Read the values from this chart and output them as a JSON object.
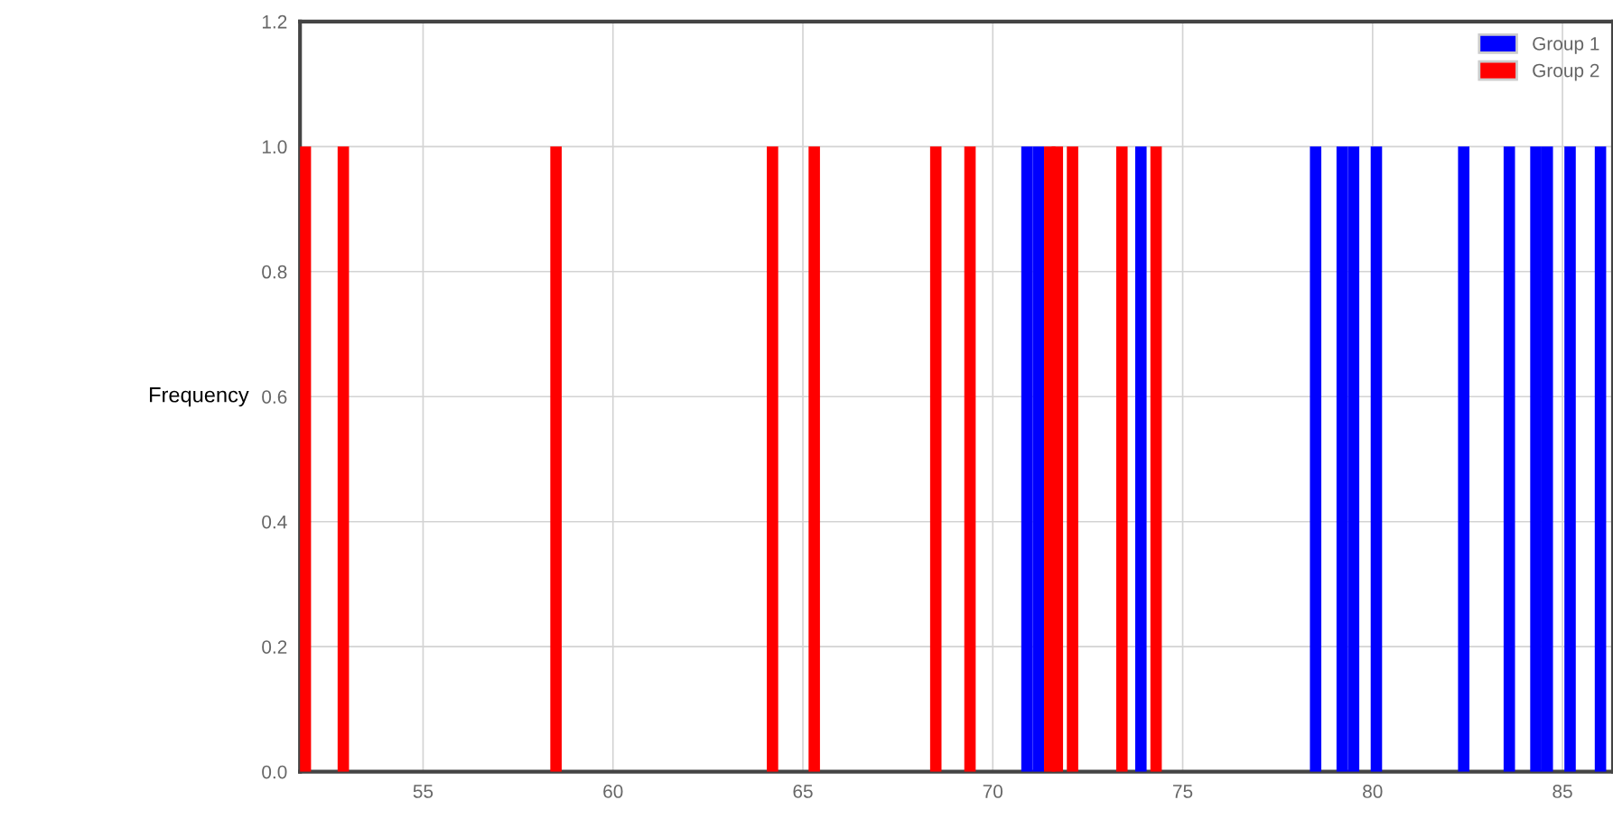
{
  "chart_data": {
    "type": "bar",
    "ylabel": "Frequency",
    "series": [
      {
        "name": "Group 1",
        "color": "#0000ff",
        "x": [
          70.9,
          71.2,
          73.9,
          78.5,
          79.2,
          79.5,
          80.1,
          82.4,
          83.6,
          84.3,
          84.6,
          85.2,
          86.0
        ],
        "values": [
          1,
          1,
          1,
          1,
          1,
          1,
          1,
          1,
          1,
          1,
          1,
          1,
          1
        ]
      },
      {
        "name": "Group 2",
        "color": "#ff0000",
        "x": [
          51.9,
          52.9,
          58.5,
          64.2,
          65.3,
          68.5,
          69.4,
          71.5,
          71.7,
          72.1,
          73.4,
          74.3
        ],
        "values": [
          1,
          1,
          1,
          1,
          1,
          1,
          1,
          1,
          1,
          1,
          1,
          1
        ]
      }
    ],
    "xlim": [
      51.76,
      86.33
    ],
    "xticks": [
      55,
      60,
      65,
      70,
      75,
      80,
      85
    ],
    "ylim": [
      0,
      1.2
    ],
    "yticks": [
      {
        "value": 0,
        "label": "0.0"
      },
      0.2,
      0.4,
      0.6,
      0.8,
      {
        "value": 1,
        "label": "1.0"
      },
      1.2
    ],
    "grid": true,
    "legend": "top right"
  }
}
